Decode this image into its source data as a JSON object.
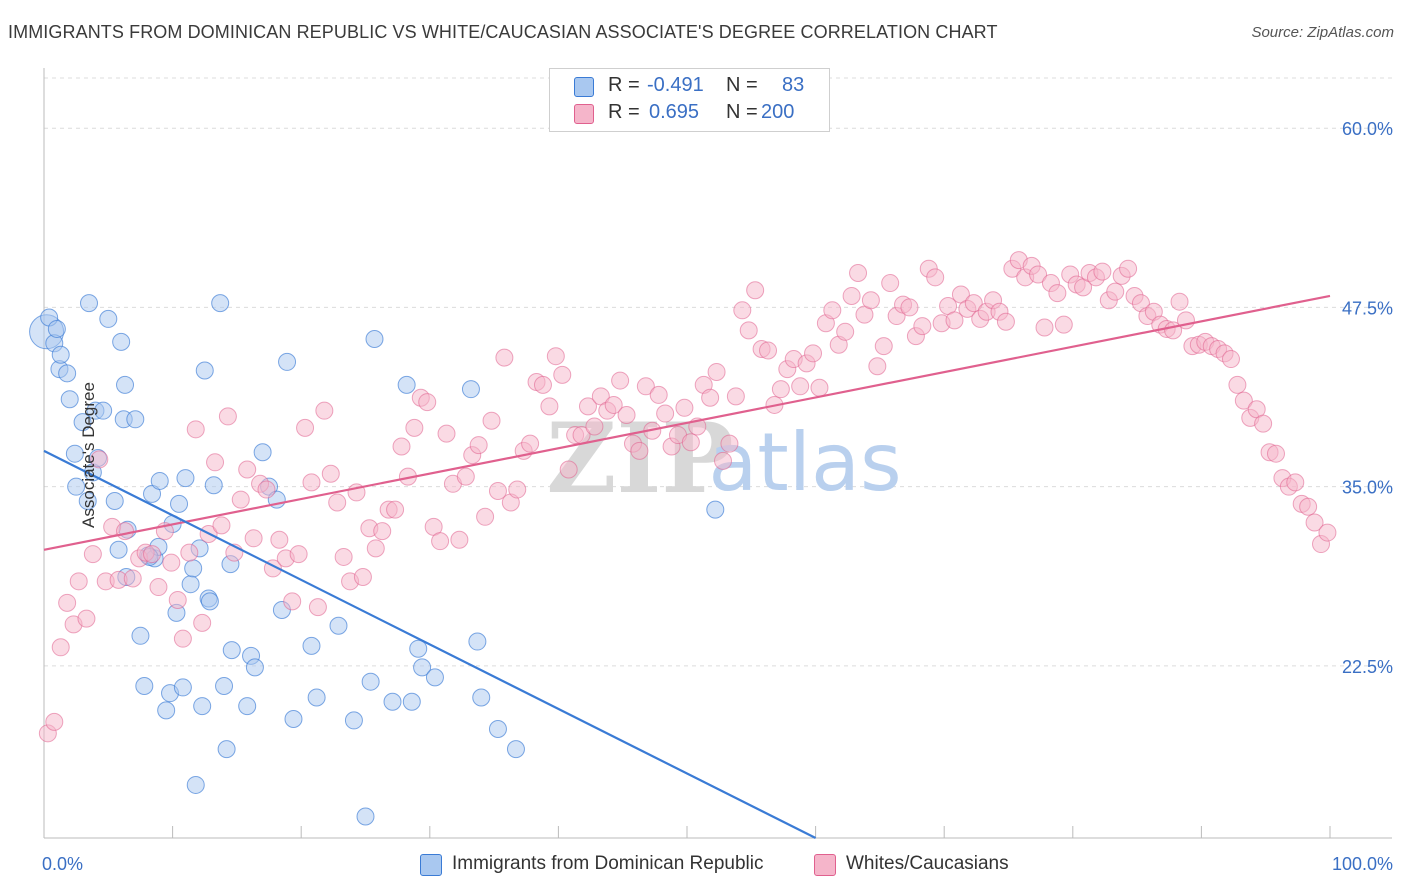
{
  "title": "IMMIGRANTS FROM DOMINICAN REPUBLIC VS WHITE/CAUCASIAN ASSOCIATE'S DEGREE CORRELATION CHART",
  "source": "Source: ZipAtlas.com",
  "watermark": {
    "zip": "ZIP",
    "atlas": "atlas"
  },
  "colors": {
    "blue": "#3a7bd5",
    "blue_fill": "#a9c8f0",
    "pink": "#e0608e",
    "pink_fill": "#f5b5ca",
    "tick_label": "#3a6fc4",
    "grid": "#dcdcdc"
  },
  "stats": [
    {
      "r_label": "R =",
      "r_value": "-0.491",
      "n_label": "N =",
      "n_value": "83"
    },
    {
      "r_label": "R =",
      "r_value": "0.695",
      "n_label": "N =",
      "n_value": "200"
    }
  ],
  "legend": [
    "Immigrants from Dominican Republic",
    "Whites/Caucasians"
  ],
  "chart_data": {
    "type": "scatter",
    "xlabel": "",
    "ylabel": "Associate's Degree",
    "xlim": [
      0,
      100
    ],
    "ylim": [
      10.5,
      63.5
    ],
    "x_tick_labels": [
      {
        "value": 0,
        "label": "0.0%"
      },
      {
        "value": 100,
        "label": "100.0%"
      }
    ],
    "y_ticks": [
      {
        "value": 22.5,
        "label": "22.5%"
      },
      {
        "value": 35.0,
        "label": "35.0%"
      },
      {
        "value": 47.5,
        "label": "47.5%"
      },
      {
        "value": 60.0,
        "label": "60.0%"
      }
    ],
    "grid": true,
    "legend_position": "bottom",
    "series": [
      {
        "name": "Immigrants from Dominican Republic",
        "color": "#3a7bd5",
        "R": -0.491,
        "N": 83,
        "trend": {
          "x": [
            0,
            60
          ],
          "y": [
            37.5,
            10.5
          ]
        },
        "points": [
          [
            0.2,
            45.8
          ],
          [
            0.4,
            46.8
          ],
          [
            0.8,
            45.0
          ],
          [
            1.2,
            43.2
          ],
          [
            1.3,
            44.2
          ],
          [
            1.8,
            42.9
          ],
          [
            2.0,
            41.1
          ],
          [
            2.4,
            37.3
          ],
          [
            2.5,
            35.0
          ],
          [
            3.0,
            39.5
          ],
          [
            3.5,
            47.8
          ],
          [
            3.4,
            34.0
          ],
          [
            3.8,
            36.0
          ],
          [
            4.0,
            40.3
          ],
          [
            4.2,
            37.0
          ],
          [
            5.0,
            46.7
          ],
          [
            5.5,
            34.0
          ],
          [
            5.8,
            30.6
          ],
          [
            6.0,
            45.1
          ],
          [
            6.2,
            39.7
          ],
          [
            6.3,
            42.1
          ],
          [
            6.5,
            32.0
          ],
          [
            6.4,
            28.7
          ],
          [
            7.1,
            39.7
          ],
          [
            7.5,
            24.6
          ],
          [
            7.8,
            21.1
          ],
          [
            8.1,
            30.2
          ],
          [
            8.4,
            34.5
          ],
          [
            8.6,
            30.0
          ],
          [
            8.9,
            30.8
          ],
          [
            9.0,
            35.4
          ],
          [
            9.5,
            19.4
          ],
          [
            9.8,
            20.6
          ],
          [
            10.0,
            32.4
          ],
          [
            10.3,
            26.2
          ],
          [
            10.5,
            33.8
          ],
          [
            10.8,
            21.0
          ],
          [
            11.0,
            35.6
          ],
          [
            11.4,
            28.2
          ],
          [
            11.6,
            29.3
          ],
          [
            11.8,
            14.2
          ],
          [
            12.1,
            30.7
          ],
          [
            12.3,
            19.7
          ],
          [
            12.5,
            43.1
          ],
          [
            12.8,
            27.2
          ],
          [
            13.2,
            35.1
          ],
          [
            13.7,
            47.8
          ],
          [
            14.0,
            21.1
          ],
          [
            14.2,
            16.7
          ],
          [
            14.5,
            29.6
          ],
          [
            14.6,
            23.6
          ],
          [
            15.8,
            19.7
          ],
          [
            16.1,
            23.2
          ],
          [
            16.4,
            22.4
          ],
          [
            17.0,
            37.4
          ],
          [
            17.5,
            35.0
          ],
          [
            18.1,
            34.1
          ],
          [
            18.5,
            26.4
          ],
          [
            18.9,
            43.7
          ],
          [
            19.4,
            18.8
          ],
          [
            20.8,
            23.9
          ],
          [
            21.2,
            20.3
          ],
          [
            22.9,
            25.3
          ],
          [
            24.1,
            18.7
          ],
          [
            25.0,
            12.0
          ],
          [
            25.4,
            21.4
          ],
          [
            25.7,
            45.3
          ],
          [
            27.1,
            20.0
          ],
          [
            28.2,
            42.1
          ],
          [
            28.6,
            20.0
          ],
          [
            29.1,
            23.7
          ],
          [
            29.4,
            22.4
          ],
          [
            30.4,
            21.7
          ],
          [
            33.2,
            41.8
          ],
          [
            33.7,
            24.2
          ],
          [
            34.0,
            20.3
          ],
          [
            35.3,
            18.1
          ],
          [
            36.7,
            16.7
          ],
          [
            52.2,
            33.4
          ],
          [
            1.0,
            46.0
          ],
          [
            4.6,
            40.3
          ],
          [
            8.2,
            30.1
          ],
          [
            12.9,
            27.0
          ]
        ]
      },
      {
        "name": "Whites/Caucasians",
        "color": "#e0608e",
        "R": 0.695,
        "N": 200,
        "trend": {
          "x": [
            0,
            100
          ],
          "y": [
            30.6,
            48.3
          ]
        },
        "points": [
          [
            0.3,
            17.8
          ],
          [
            0.8,
            18.6
          ],
          [
            1.3,
            23.8
          ],
          [
            1.8,
            26.9
          ],
          [
            2.3,
            25.4
          ],
          [
            2.7,
            28.4
          ],
          [
            3.3,
            25.8
          ],
          [
            3.8,
            30.3
          ],
          [
            4.3,
            36.9
          ],
          [
            4.8,
            28.4
          ],
          [
            5.3,
            32.2
          ],
          [
            5.8,
            28.5
          ],
          [
            6.3,
            31.9
          ],
          [
            6.9,
            28.6
          ],
          [
            7.4,
            30.0
          ],
          [
            7.9,
            30.4
          ],
          [
            8.4,
            30.3
          ],
          [
            8.9,
            28.0
          ],
          [
            9.4,
            31.9
          ],
          [
            9.9,
            29.7
          ],
          [
            10.4,
            27.1
          ],
          [
            10.8,
            24.4
          ],
          [
            11.3,
            30.4
          ],
          [
            11.8,
            39.0
          ],
          [
            12.3,
            25.5
          ],
          [
            12.8,
            31.7
          ],
          [
            13.3,
            36.7
          ],
          [
            13.8,
            32.3
          ],
          [
            14.3,
            39.9
          ],
          [
            14.8,
            30.4
          ],
          [
            15.3,
            34.1
          ],
          [
            15.8,
            36.2
          ],
          [
            16.3,
            31.4
          ],
          [
            16.8,
            35.2
          ],
          [
            17.3,
            34.8
          ],
          [
            17.8,
            29.3
          ],
          [
            18.3,
            31.3
          ],
          [
            18.8,
            30.0
          ],
          [
            19.3,
            27.0
          ],
          [
            19.8,
            30.3
          ],
          [
            20.3,
            39.1
          ],
          [
            20.8,
            35.3
          ],
          [
            21.3,
            26.6
          ],
          [
            21.8,
            40.3
          ],
          [
            22.3,
            35.9
          ],
          [
            22.8,
            33.9
          ],
          [
            23.3,
            30.1
          ],
          [
            23.8,
            28.4
          ],
          [
            24.3,
            34.6
          ],
          [
            24.8,
            28.7
          ],
          [
            25.3,
            32.1
          ],
          [
            25.8,
            30.7
          ],
          [
            26.3,
            31.9
          ],
          [
            26.8,
            33.4
          ],
          [
            27.3,
            33.4
          ],
          [
            27.8,
            37.8
          ],
          [
            28.3,
            35.7
          ],
          [
            28.8,
            39.1
          ],
          [
            29.3,
            41.2
          ],
          [
            29.8,
            40.9
          ],
          [
            30.3,
            32.2
          ],
          [
            30.8,
            31.2
          ],
          [
            31.3,
            38.7
          ],
          [
            31.8,
            35.2
          ],
          [
            32.3,
            31.3
          ],
          [
            32.8,
            35.7
          ],
          [
            33.3,
            37.2
          ],
          [
            33.8,
            37.9
          ],
          [
            34.3,
            32.9
          ],
          [
            34.8,
            39.6
          ],
          [
            35.3,
            34.7
          ],
          [
            35.8,
            44.0
          ],
          [
            36.3,
            33.9
          ],
          [
            36.8,
            34.8
          ],
          [
            37.3,
            37.5
          ],
          [
            37.8,
            38.0
          ],
          [
            38.3,
            42.3
          ],
          [
            38.8,
            42.1
          ],
          [
            39.3,
            40.6
          ],
          [
            39.8,
            44.1
          ],
          [
            40.3,
            42.8
          ],
          [
            40.8,
            36.2
          ],
          [
            41.3,
            38.6
          ],
          [
            41.8,
            38.6
          ],
          [
            42.3,
            40.6
          ],
          [
            42.8,
            39.2
          ],
          [
            43.3,
            41.3
          ],
          [
            43.8,
            40.3
          ],
          [
            44.3,
            40.7
          ],
          [
            44.8,
            42.4
          ],
          [
            45.3,
            40.0
          ],
          [
            45.8,
            38.0
          ],
          [
            46.3,
            37.5
          ],
          [
            46.8,
            42.0
          ],
          [
            47.3,
            38.9
          ],
          [
            47.8,
            41.4
          ],
          [
            48.3,
            40.1
          ],
          [
            48.8,
            37.8
          ],
          [
            49.3,
            38.6
          ],
          [
            49.8,
            40.5
          ],
          [
            50.3,
            38.1
          ],
          [
            50.8,
            39.2
          ],
          [
            51.3,
            42.1
          ],
          [
            51.8,
            41.2
          ],
          [
            52.3,
            43.0
          ],
          [
            52.8,
            36.8
          ],
          [
            53.3,
            38.0
          ],
          [
            53.8,
            41.3
          ],
          [
            54.3,
            47.3
          ],
          [
            54.8,
            45.9
          ],
          [
            55.3,
            48.7
          ],
          [
            55.8,
            44.6
          ],
          [
            56.3,
            44.5
          ],
          [
            56.8,
            40.7
          ],
          [
            57.3,
            41.8
          ],
          [
            57.8,
            43.2
          ],
          [
            58.3,
            43.9
          ],
          [
            58.8,
            42.0
          ],
          [
            59.3,
            43.6
          ],
          [
            59.8,
            44.3
          ],
          [
            60.3,
            41.9
          ],
          [
            60.8,
            46.4
          ],
          [
            61.3,
            47.3
          ],
          [
            61.8,
            44.9
          ],
          [
            62.3,
            45.8
          ],
          [
            62.8,
            48.3
          ],
          [
            63.3,
            49.9
          ],
          [
            63.8,
            47.0
          ],
          [
            64.3,
            48.0
          ],
          [
            64.8,
            43.4
          ],
          [
            65.3,
            44.8
          ],
          [
            65.8,
            49.2
          ],
          [
            66.3,
            46.9
          ],
          [
            66.8,
            47.7
          ],
          [
            67.3,
            47.5
          ],
          [
            67.8,
            45.5
          ],
          [
            68.3,
            46.2
          ],
          [
            68.8,
            50.2
          ],
          [
            69.3,
            49.6
          ],
          [
            69.8,
            46.4
          ],
          [
            70.3,
            47.6
          ],
          [
            70.8,
            46.6
          ],
          [
            71.3,
            48.4
          ],
          [
            71.8,
            47.4
          ],
          [
            72.3,
            47.8
          ],
          [
            72.8,
            46.7
          ],
          [
            73.3,
            47.2
          ],
          [
            73.8,
            48.0
          ],
          [
            74.3,
            47.2
          ],
          [
            74.8,
            46.5
          ],
          [
            75.3,
            50.2
          ],
          [
            75.8,
            50.8
          ],
          [
            76.3,
            49.6
          ],
          [
            76.8,
            50.4
          ],
          [
            77.3,
            49.8
          ],
          [
            77.8,
            46.1
          ],
          [
            78.3,
            49.2
          ],
          [
            78.8,
            48.5
          ],
          [
            79.3,
            46.3
          ],
          [
            79.8,
            49.8
          ],
          [
            80.3,
            49.1
          ],
          [
            80.8,
            48.9
          ],
          [
            81.3,
            49.9
          ],
          [
            81.8,
            49.6
          ],
          [
            82.3,
            50.0
          ],
          [
            82.8,
            48.0
          ],
          [
            83.3,
            48.6
          ],
          [
            83.8,
            49.7
          ],
          [
            84.3,
            50.2
          ],
          [
            84.8,
            48.3
          ],
          [
            85.3,
            47.8
          ],
          [
            85.8,
            46.9
          ],
          [
            86.3,
            47.2
          ],
          [
            86.8,
            46.3
          ],
          [
            87.3,
            46.0
          ],
          [
            87.8,
            45.9
          ],
          [
            88.3,
            47.9
          ],
          [
            88.8,
            46.6
          ],
          [
            89.3,
            44.8
          ],
          [
            89.8,
            44.9
          ],
          [
            90.3,
            45.1
          ],
          [
            90.8,
            44.8
          ],
          [
            91.3,
            44.6
          ],
          [
            91.8,
            44.3
          ],
          [
            92.3,
            43.9
          ],
          [
            92.8,
            42.1
          ],
          [
            93.3,
            41.0
          ],
          [
            93.8,
            39.8
          ],
          [
            94.3,
            40.4
          ],
          [
            94.8,
            39.4
          ],
          [
            95.3,
            37.4
          ],
          [
            95.8,
            37.3
          ],
          [
            96.3,
            35.6
          ],
          [
            96.8,
            35.0
          ],
          [
            97.3,
            35.3
          ],
          [
            97.8,
            33.8
          ],
          [
            98.3,
            33.6
          ],
          [
            98.8,
            32.5
          ],
          [
            99.3,
            31.0
          ],
          [
            99.8,
            31.8
          ]
        ]
      }
    ]
  }
}
